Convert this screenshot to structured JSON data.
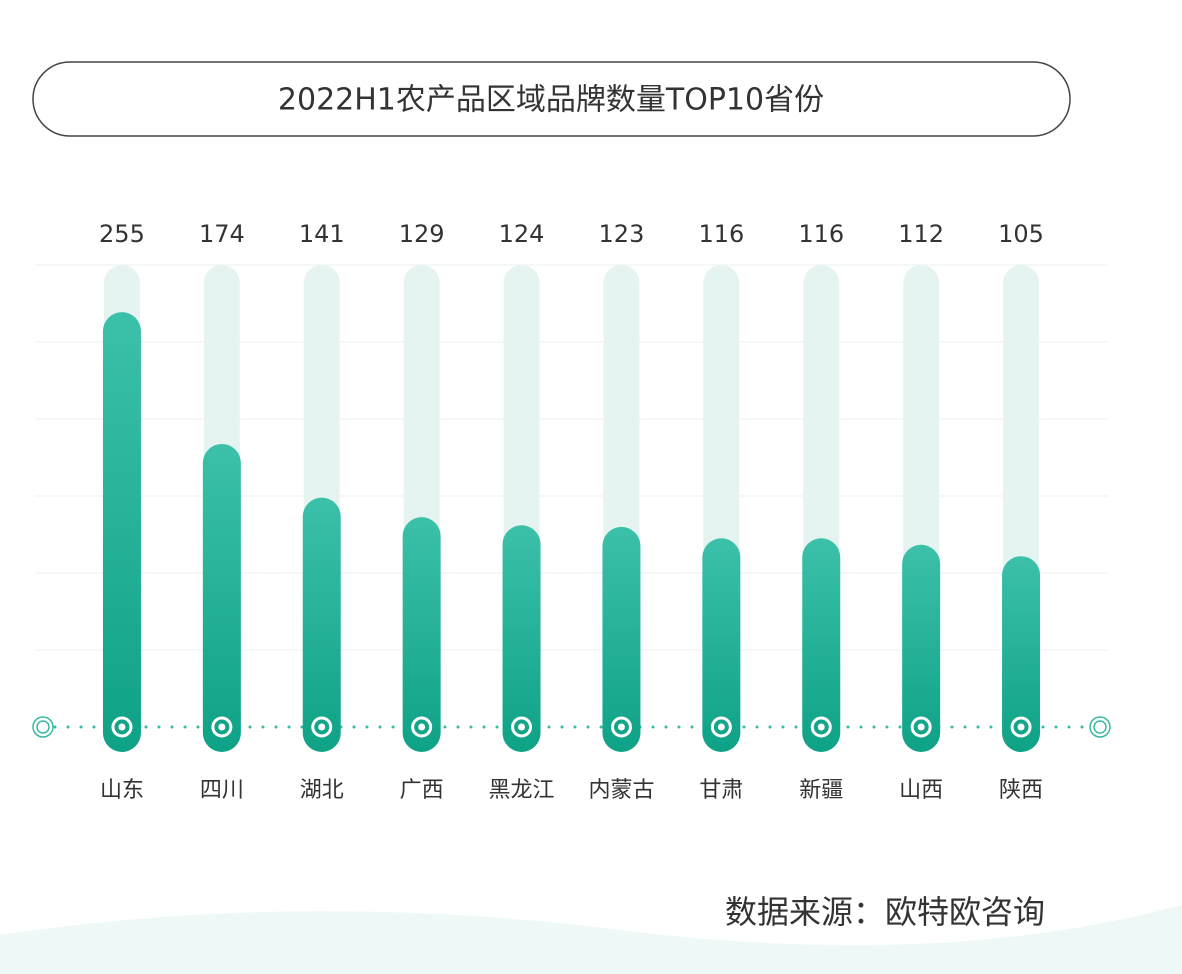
{
  "chart_data": {
    "type": "bar",
    "title": "2022H1农产品区域品牌数量TOP10省份",
    "categories": [
      "山东",
      "四川",
      "湖北",
      "广西",
      "黑龙江",
      "内蒙古",
      "甘肃",
      "新疆",
      "山西",
      "陕西"
    ],
    "values": [
      255,
      174,
      141,
      129,
      124,
      123,
      116,
      116,
      112,
      105
    ],
    "color": "#1aaa8f",
    "ylim": [
      0,
      284
    ],
    "grid": true,
    "source": "数据来源：欧特欧咨询"
  }
}
